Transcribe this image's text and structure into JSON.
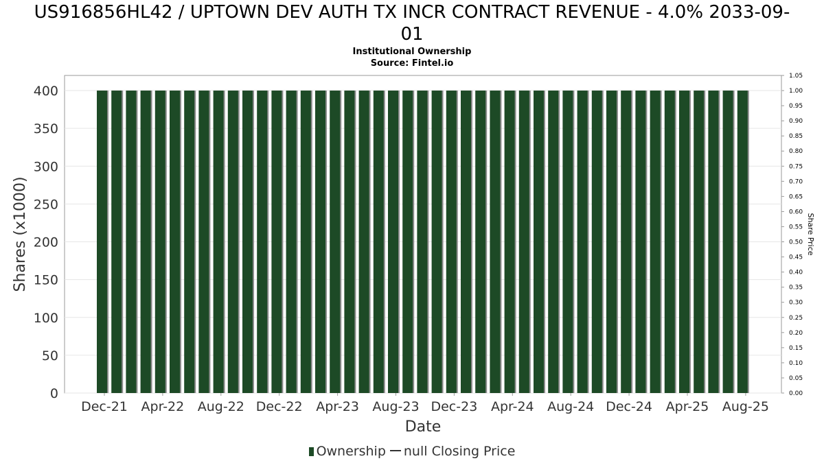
{
  "header": {
    "title_line1": "US916856HL42 / UPTOWN DEV AUTH TX INCR CONTRACT REVENUE - 4.0% 2033-09-",
    "title_line2": "01",
    "subtitle": "Institutional Ownership",
    "source": "Source: Fintel.io"
  },
  "legend": {
    "ownership": "Ownership",
    "price": "null Closing Price"
  },
  "colors": {
    "bar": "#1d4a26",
    "bar_shadow": "#8c8c8c",
    "grid": "#e6e6e6",
    "axis_text": "#333333"
  },
  "chart_data": {
    "type": "bar",
    "title": "US916856HL42 / UPTOWN DEV AUTH TX INCR CONTRACT REVENUE - 4.0% 2033-09-01",
    "subtitle": "Institutional Ownership",
    "xlabel": "Date",
    "ylabel": "Shares (x1000)",
    "y2label": "Share Price",
    "ylim": [
      0,
      420
    ],
    "y2lim": [
      0,
      1.05
    ],
    "yticks": [
      0,
      50,
      100,
      150,
      200,
      250,
      300,
      350,
      400
    ],
    "y2ticks": [
      "0.00",
      "0.05",
      "0.10",
      "0.15",
      "0.20",
      "0.25",
      "0.30",
      "0.35",
      "0.40",
      "0.45",
      "0.50",
      "0.55",
      "0.60",
      "0.65",
      "0.70",
      "0.75",
      "0.80",
      "0.85",
      "0.90",
      "0.95",
      "1.00",
      "1.05"
    ],
    "xticks": [
      "Dec-21",
      "Apr-22",
      "Aug-22",
      "Dec-22",
      "Apr-23",
      "Aug-23",
      "Dec-23",
      "Apr-24",
      "Aug-24",
      "Dec-24",
      "Apr-25",
      "Aug-25"
    ],
    "grid": true,
    "legend_position": "bottom",
    "series": [
      {
        "name": "Ownership",
        "values": [
          400,
          400,
          400,
          400,
          400,
          400,
          400,
          400,
          400,
          400,
          400,
          400,
          400,
          400,
          400,
          400,
          400,
          400,
          400,
          400,
          400,
          400,
          400,
          400,
          400,
          400,
          400,
          400,
          400,
          400,
          400,
          400,
          400,
          400,
          400,
          400,
          400,
          400,
          400,
          400,
          400,
          400,
          400,
          400,
          400
        ]
      }
    ]
  }
}
